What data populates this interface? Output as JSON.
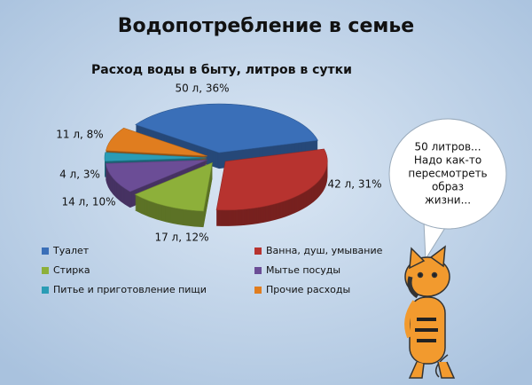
{
  "chart_data": {
    "type": "pie3d",
    "page_title": "Водопотребление в семье",
    "title": "Расход воды в быту, литров в сутки",
    "categories": [
      "Туалет",
      "Ванна, душ, умывание",
      "Стирка",
      "Мытье посуды",
      "Питье и приготовление пищи",
      "Прочие расходы"
    ],
    "values": [
      50,
      42,
      17,
      14,
      4,
      11
    ],
    "value_labels": [
      "50 л, 36%",
      "42 л, 31%",
      "17 л, 12%",
      "14 л, 10%",
      "4 л, 3%",
      "11 л, 8%"
    ],
    "colors": [
      "#3a6fb8",
      "#b7332f",
      "#8db03a",
      "#6b4d96",
      "#2a9cb5",
      "#e07d1f"
    ],
    "legend": "bottom",
    "annotation": [
      "50 литров...",
      "Надо как-то",
      "пересмотреть",
      "образ",
      "жизни..."
    ]
  }
}
